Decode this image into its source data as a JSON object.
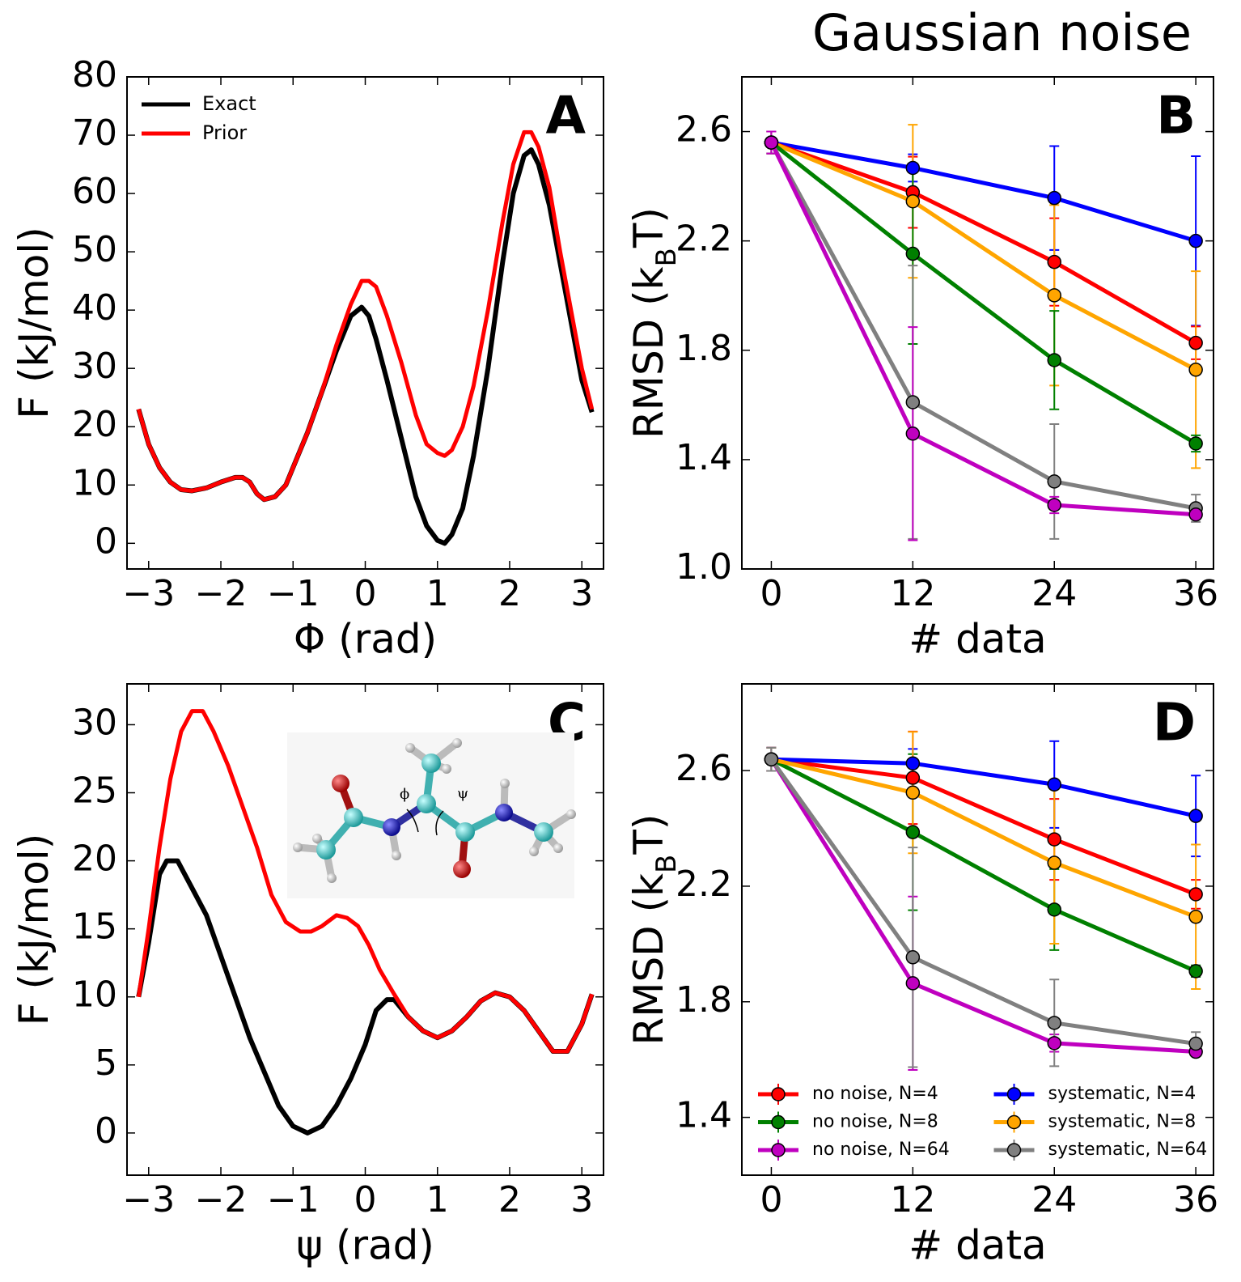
{
  "chart_data": [
    {
      "type": "line",
      "label": "A",
      "xlabel": "Φ (rad)",
      "ylabel": [
        "F (kJ/mol)"
      ],
      "xlim": [
        -3.3,
        3.3
      ],
      "ylim": [
        -4.4,
        80
      ],
      "xticks": [
        {
          "value": -3,
          "label": "−3"
        },
        {
          "value": -2,
          "label": "−2"
        },
        {
          "value": -1,
          "label": "−1"
        },
        0,
        1,
        2,
        3
      ],
      "yticks": [
        0,
        10,
        20,
        30,
        40,
        50,
        60,
        70,
        80
      ],
      "legend": "upper left",
      "series": [
        {
          "name": "Exact",
          "color": "#000000",
          "x": [
            -3.14,
            -3.0,
            -2.85,
            -2.7,
            -2.55,
            -2.4,
            -2.2,
            -2.0,
            -1.8,
            -1.7,
            -1.6,
            -1.5,
            -1.4,
            -1.25,
            -1.1,
            -1.0,
            -0.8,
            -0.6,
            -0.4,
            -0.2,
            -0.05,
            0.05,
            0.15,
            0.3,
            0.5,
            0.7,
            0.85,
            1.0,
            1.1,
            1.2,
            1.35,
            1.5,
            1.7,
            1.9,
            2.05,
            2.2,
            2.3,
            2.4,
            2.55,
            2.7,
            2.85,
            3.0,
            3.14
          ],
          "values": [
            23,
            17,
            13,
            10.5,
            9.2,
            9,
            9.5,
            10.5,
            11.3,
            11.3,
            10.5,
            8.5,
            7.5,
            8,
            10,
            13,
            19,
            26,
            33,
            39,
            40.5,
            39,
            35,
            28,
            18,
            8,
            3,
            0.5,
            0,
            1.5,
            6,
            15,
            30,
            48,
            60,
            66.5,
            67.5,
            65,
            58,
            48,
            38,
            28,
            22.5
          ]
        },
        {
          "name": "Prior",
          "color": "#ff0000",
          "x": [
            -3.14,
            -3.0,
            -2.85,
            -2.7,
            -2.55,
            -2.4,
            -2.2,
            -2.0,
            -1.8,
            -1.7,
            -1.6,
            -1.5,
            -1.4,
            -1.25,
            -1.1,
            -1.0,
            -0.8,
            -0.6,
            -0.4,
            -0.2,
            -0.05,
            0.05,
            0.15,
            0.3,
            0.5,
            0.7,
            0.85,
            1.0,
            1.1,
            1.2,
            1.35,
            1.5,
            1.7,
            1.9,
            2.05,
            2.2,
            2.3,
            2.4,
            2.55,
            2.7,
            2.85,
            3.0,
            3.14
          ],
          "values": [
            23,
            17,
            13,
            10.5,
            9.2,
            9,
            9.5,
            10.5,
            11.3,
            11.3,
            10.5,
            8.5,
            7.5,
            8,
            10,
            13,
            19,
            26,
            34,
            41,
            45,
            45,
            44,
            39,
            31,
            22,
            17,
            15.5,
            15,
            16,
            20,
            27,
            40,
            55,
            65,
            70.5,
            70.5,
            68,
            61,
            50,
            40,
            30,
            23
          ]
        }
      ]
    },
    {
      "type": "errorbar",
      "title": "Gaussian noise",
      "label": "B",
      "xlabel": "# data",
      "ylabel": [
        "RMSD (k",
        "B",
        "T)"
      ],
      "xlim": [
        -2.5,
        37.5
      ],
      "ylim": [
        1.0,
        2.8
      ],
      "xticks": [
        0,
        12,
        24,
        36
      ],
      "yticks": [
        {
          "value": 1.0,
          "label": "1.0"
        },
        1.4,
        1.8,
        2.2,
        2.6
      ],
      "x": [
        0,
        12,
        24,
        36
      ],
      "series": [
        {
          "color": "#0000ff",
          "values": [
            2.56,
            2.467,
            2.357,
            2.2
          ],
          "errors": [
            0.04,
            0.05,
            0.19,
            0.31
          ]
        },
        {
          "color": "#ff0000",
          "values": [
            2.56,
            2.378,
            2.123,
            1.827
          ],
          "errors": [
            0.04,
            0.13,
            0.16,
            0.06
          ]
        },
        {
          "color": "#ffa500",
          "values": [
            2.56,
            2.345,
            2.001,
            1.729
          ],
          "errors": [
            0.04,
            0.28,
            0.33,
            0.36
          ]
        },
        {
          "color": "#008000",
          "values": [
            2.56,
            2.153,
            1.764,
            1.459
          ],
          "errors": [
            0.04,
            0.33,
            0.18,
            0.03
          ]
        },
        {
          "color": "#808080",
          "values": [
            2.56,
            1.61,
            1.32,
            1.222
          ],
          "errors": [
            0.04,
            0.5,
            0.21,
            0.05
          ]
        },
        {
          "color": "#bf00bf",
          "values": [
            2.56,
            1.495,
            1.234,
            1.199
          ],
          "errors": [
            0.04,
            0.39,
            0.03,
            0.01
          ]
        }
      ]
    },
    {
      "type": "line",
      "label": "C",
      "xlabel": "ψ (rad)",
      "ylabel": [
        "F (kJ/mol)"
      ],
      "inset_labels": [
        "ϕ",
        "ψ"
      ],
      "xlim": [
        -3.3,
        3.3
      ],
      "ylim": [
        -3.1,
        33
      ],
      "xticks": [
        {
          "value": -3,
          "label": "−3"
        },
        {
          "value": -2,
          "label": "−2"
        },
        {
          "value": -1,
          "label": "−1"
        },
        0,
        1,
        2,
        3
      ],
      "yticks": [
        0,
        5,
        10,
        15,
        20,
        25,
        30
      ],
      "series": [
        {
          "color": "#000000",
          "x": [
            -3.14,
            -3.0,
            -2.85,
            -2.75,
            -2.6,
            -2.4,
            -2.2,
            -2.0,
            -1.8,
            -1.6,
            -1.4,
            -1.2,
            -1.0,
            -0.8,
            -0.6,
            -0.4,
            -0.2,
            0,
            0.15,
            0.3,
            0.4,
            0.6,
            0.8,
            1.0,
            1.2,
            1.4,
            1.6,
            1.8,
            2.0,
            2.2,
            2.4,
            2.6,
            2.8,
            3.0,
            3.14
          ],
          "values": [
            10,
            14,
            19,
            20,
            20,
            18,
            16,
            13,
            10,
            7,
            4.5,
            2,
            0.5,
            0,
            0.5,
            2,
            4,
            6.5,
            9,
            9.8,
            9.8,
            8.5,
            7.5,
            7,
            7.5,
            8.5,
            9.7,
            10.3,
            10,
            9,
            7.5,
            6,
            6,
            8,
            10.2
          ]
        },
        {
          "color": "#ff0000",
          "x": [
            -3.14,
            -3.0,
            -2.85,
            -2.7,
            -2.55,
            -2.4,
            -2.25,
            -2.1,
            -1.9,
            -1.7,
            -1.5,
            -1.3,
            -1.1,
            -0.9,
            -0.75,
            -0.6,
            -0.4,
            -0.25,
            -0.1,
            0.05,
            0.2,
            0.4,
            0.6,
            0.8,
            1.0,
            1.2,
            1.4,
            1.6,
            1.8,
            2.0,
            2.2,
            2.4,
            2.6,
            2.8,
            3.0,
            3.14
          ],
          "values": [
            10,
            15,
            21,
            26,
            29.5,
            31,
            31,
            29.5,
            27,
            24,
            21,
            17.5,
            15.5,
            14.8,
            14.8,
            15.2,
            16,
            15.8,
            15.2,
            13.8,
            12,
            10.2,
            8.5,
            7.5,
            7,
            7.5,
            8.5,
            9.7,
            10.3,
            10,
            9,
            7.5,
            6,
            6,
            8,
            10.2
          ]
        }
      ]
    },
    {
      "type": "errorbar",
      "label": "D",
      "xlabel": "# data",
      "ylabel": [
        "RMSD (k",
        "B",
        "T)"
      ],
      "xlim": [
        -2.5,
        37.5
      ],
      "ylim": [
        1.2,
        2.9
      ],
      "xticks": [
        0,
        12,
        24,
        36
      ],
      "yticks": [
        1.4,
        1.8,
        2.2,
        2.6
      ],
      "x": [
        0,
        12,
        24,
        36
      ],
      "legend": "lower center",
      "legend_columns": 2,
      "series": [
        {
          "name": "no noise, N=4",
          "color": "#ff0000",
          "values": [
            2.639,
            2.575,
            2.362,
            2.172
          ],
          "errors": [
            0.04,
            0.16,
            0.14,
            0.05
          ]
        },
        {
          "name": "no noise, N=8",
          "color": "#008000",
          "values": [
            2.639,
            2.387,
            2.119,
            1.906
          ],
          "errors": [
            0.04,
            0.27,
            0.14,
            0.02
          ]
        },
        {
          "name": "no noise, N=64",
          "color": "#bf00bf",
          "values": [
            2.639,
            1.864,
            1.657,
            1.627
          ],
          "errors": [
            0.04,
            0.3,
            0.03,
            0.01
          ]
        },
        {
          "name": "systematic, N=4",
          "color": "#0000ff",
          "values": [
            2.639,
            2.625,
            2.552,
            2.443
          ],
          "errors": [
            0.04,
            0.05,
            0.15,
            0.14
          ]
        },
        {
          "name": "systematic, N=8",
          "color": "#ffa500",
          "values": [
            2.639,
            2.524,
            2.281,
            2.094
          ],
          "errors": [
            0.04,
            0.21,
            0.28,
            0.25
          ]
        },
        {
          "name": "systematic, N=64",
          "color": "#808080",
          "values": [
            2.639,
            1.954,
            1.727,
            1.655
          ],
          "errors": [
            0.04,
            0.38,
            0.15,
            0.04
          ]
        }
      ]
    }
  ]
}
